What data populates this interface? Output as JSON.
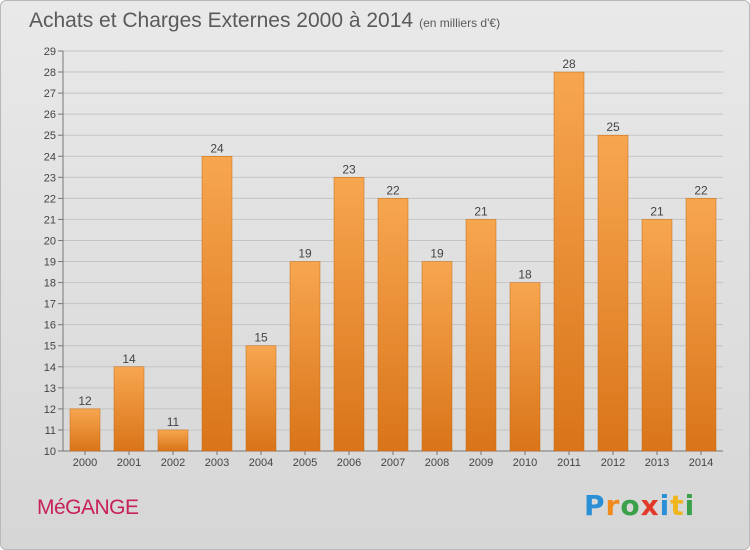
{
  "header": {
    "title": "Achats et Charges Externes 2000 à 2014",
    "subtitle": "(en milliers d'€)"
  },
  "footer": {
    "commune": "MéGANGE",
    "logo": {
      "letters": [
        "P",
        "r",
        "o",
        "x",
        "i",
        "t",
        "i"
      ],
      "colors": [
        "#2a8fd6",
        "#f08a1c",
        "#3aa04a",
        "#e23a2a",
        "#2a8fd6",
        "#f0b41c",
        "#3aa04a"
      ]
    }
  },
  "colors": {
    "bar_light": "#f7a650",
    "bar_dark": "#d97418",
    "grid": "#c4c4c4",
    "axis": "#777777"
  },
  "chart_data": {
    "type": "bar",
    "title": "Achats et Charges Externes 2000 à 2014",
    "subtitle": "(en milliers d'€)",
    "categories": [
      "2000",
      "2001",
      "2002",
      "2003",
      "2004",
      "2005",
      "2006",
      "2007",
      "2008",
      "2009",
      "2010",
      "2011",
      "2012",
      "2013",
      "2014"
    ],
    "values": [
      12,
      14,
      11,
      24,
      15,
      19,
      23,
      22,
      19,
      21,
      18,
      28,
      25,
      21,
      22
    ],
    "ylim": [
      10,
      29
    ],
    "yticks": [
      10,
      11,
      12,
      13,
      14,
      15,
      16,
      17,
      18,
      19,
      20,
      21,
      22,
      23,
      24,
      25,
      26,
      27,
      28,
      29
    ],
    "grid": true,
    "data_labels": true
  }
}
